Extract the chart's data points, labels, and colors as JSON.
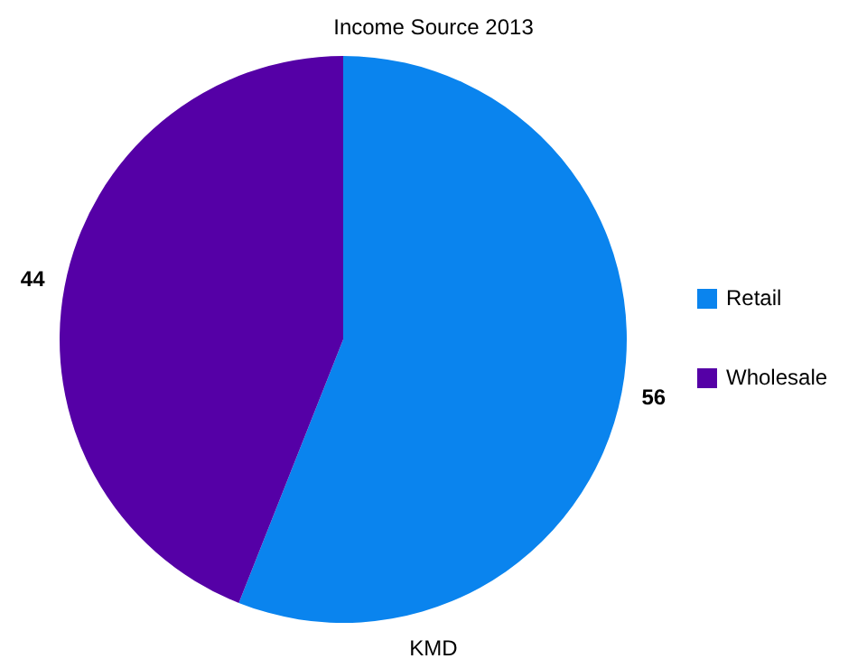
{
  "chart_data": {
    "type": "pie",
    "title": "Income Source 2013",
    "xlabel": "KMD",
    "categories": [
      "Retail",
      "Wholesale"
    ],
    "values": [
      56,
      44
    ],
    "colors": [
      "#0a84ee",
      "#5500a6"
    ],
    "data_labels": true,
    "legend": "right"
  }
}
